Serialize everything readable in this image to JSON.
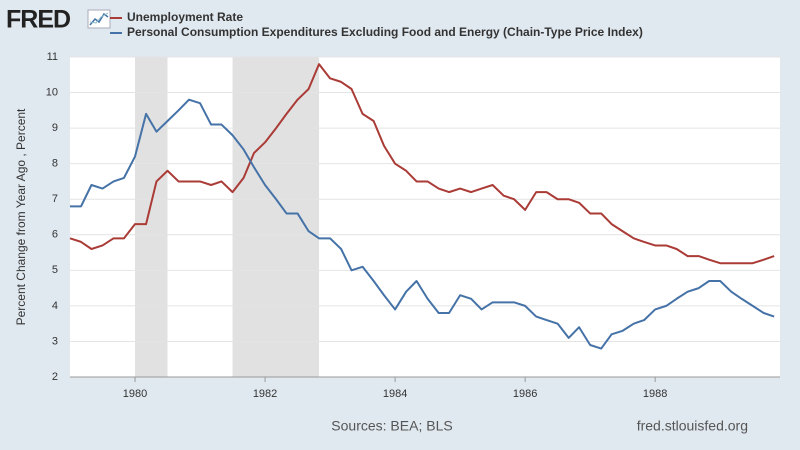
{
  "chart_data": {
    "type": "line",
    "logo": "FRED",
    "ylabel": "Percent Change from Year Ago , Percent",
    "source": "Sources: BEA; BLS",
    "site": "fred.stlouisfed.org",
    "xlim": [
      1979,
      1989.92
    ],
    "xticks": [
      1980,
      1982,
      1984,
      1986,
      1988
    ],
    "ylim": [
      2,
      11
    ],
    "yticks": [
      2,
      3,
      4,
      5,
      6,
      7,
      8,
      9,
      10,
      11
    ],
    "grid": true,
    "recessions": [
      {
        "start": 1980.0,
        "end": 1980.5
      },
      {
        "start": 1981.5,
        "end": 1982.83
      }
    ],
    "recession_color": "#e1e1e1",
    "x": [
      1979,
      1979.17,
      1979.33,
      1979.5,
      1979.67,
      1979.83,
      1980,
      1980.17,
      1980.33,
      1980.5,
      1980.67,
      1980.83,
      1981,
      1981.17,
      1981.33,
      1981.5,
      1981.67,
      1981.83,
      1982,
      1982.17,
      1982.33,
      1982.5,
      1982.67,
      1982.83,
      1983,
      1983.17,
      1983.33,
      1983.5,
      1983.67,
      1983.83,
      1984,
      1984.17,
      1984.33,
      1984.5,
      1984.67,
      1984.83,
      1985,
      1985.17,
      1985.33,
      1985.5,
      1985.67,
      1985.83,
      1986,
      1986.17,
      1986.33,
      1986.5,
      1986.67,
      1986.83,
      1987,
      1987.17,
      1987.33,
      1987.5,
      1987.67,
      1987.83,
      1988,
      1988.17,
      1988.33,
      1988.5,
      1988.67,
      1988.83,
      1989,
      1989.17,
      1989.33,
      1989.5,
      1989.67,
      1989.83
    ],
    "series": [
      {
        "name": "Unemployment Rate",
        "color": "#aa3b36",
        "values": [
          5.9,
          5.8,
          5.6,
          5.7,
          5.9,
          5.9,
          6.3,
          6.3,
          7.5,
          7.8,
          7.5,
          7.5,
          7.5,
          7.4,
          7.5,
          7.2,
          7.6,
          8.3,
          8.6,
          9.0,
          9.4,
          9.8,
          10.1,
          10.8,
          10.4,
          10.3,
          10.1,
          9.4,
          9.2,
          8.5,
          8.0,
          7.8,
          7.5,
          7.5,
          7.3,
          7.2,
          7.3,
          7.2,
          7.3,
          7.4,
          7.1,
          7.0,
          6.7,
          7.2,
          7.2,
          7.0,
          7.0,
          6.9,
          6.6,
          6.6,
          6.3,
          6.1,
          5.9,
          5.8,
          5.7,
          5.7,
          5.6,
          5.4,
          5.4,
          5.3,
          5.2,
          5.2,
          5.2,
          5.2,
          5.3,
          5.4
        ]
      },
      {
        "name": "Personal Consumption Expenditures Excluding Food and Energy (Chain-Type Price Index)",
        "color": "#4572a7",
        "values": [
          6.8,
          6.8,
          7.4,
          7.3,
          7.5,
          7.6,
          8.2,
          9.4,
          8.9,
          9.2,
          9.5,
          9.8,
          9.7,
          9.1,
          9.1,
          8.8,
          8.4,
          7.9,
          7.4,
          7.0,
          6.6,
          6.6,
          6.1,
          5.9,
          5.9,
          5.6,
          5.0,
          5.1,
          4.7,
          4.3,
          3.9,
          4.4,
          4.7,
          4.2,
          3.8,
          3.8,
          4.3,
          4.2,
          3.9,
          4.1,
          4.1,
          4.1,
          4.0,
          3.7,
          3.6,
          3.5,
          3.1,
          3.4,
          2.9,
          2.8,
          3.2,
          3.3,
          3.5,
          3.6,
          3.9,
          4.0,
          4.2,
          4.4,
          4.5,
          4.7,
          4.7,
          4.4,
          4.2,
          4.0,
          3.8,
          3.7
        ]
      }
    ]
  }
}
